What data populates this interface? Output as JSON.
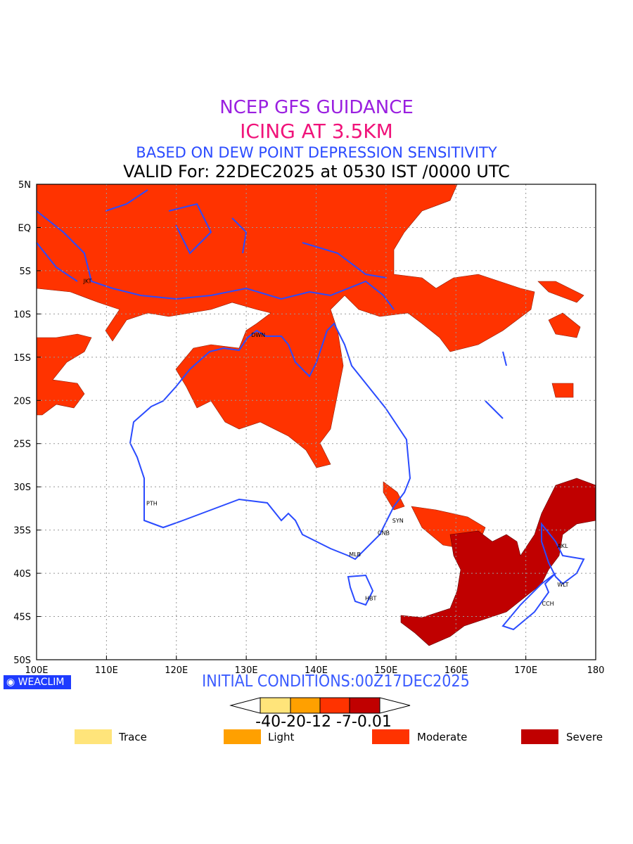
{
  "title": {
    "line1": "NCEP GFS GUIDANCE",
    "line2": "ICING AT 3.5KM",
    "line3": "BASED ON DEW POINT DEPRESSION SENSITIVITY",
    "line4": "VALID For: 22DEC2025 at 0530 IST /0000 UTC"
  },
  "map": {
    "lat_labels": [
      "5N",
      "EQ",
      "5S",
      "10S",
      "15S",
      "20S",
      "25S",
      "30S",
      "35S",
      "40S",
      "45S",
      "50S"
    ],
    "lon_labels": [
      "100E",
      "110E",
      "120E",
      "130E",
      "140E",
      "150E",
      "160E",
      "170E",
      "180"
    ],
    "cities": [
      {
        "code": "JKT",
        "lon": 107,
        "lat": -6.2
      },
      {
        "code": "DWN",
        "lon": 131,
        "lat": -12.4
      },
      {
        "code": "PTH",
        "lon": 116,
        "lat": -31.9
      },
      {
        "code": "SYN",
        "lon": 151.2,
        "lat": -33.9
      },
      {
        "code": "CNB",
        "lon": 149.1,
        "lat": -35.3
      },
      {
        "code": "MLB",
        "lon": 145,
        "lat": -37.8
      },
      {
        "code": "HBT",
        "lon": 147.3,
        "lat": -42.9
      },
      {
        "code": "AKL",
        "lon": 174.8,
        "lat": -36.8
      },
      {
        "code": "WLT",
        "lon": 174.8,
        "lat": -41.3
      },
      {
        "code": "CCH",
        "lon": 172.6,
        "lat": -43.5
      }
    ],
    "colors": {
      "coast": "#2A4BFF",
      "moderate": "#FF3300",
      "severe": "#C00000"
    }
  },
  "footer": {
    "logo": "WEACLIM",
    "initial_conditions": "INITIAL CONDITIONS:00Z17DEC2025",
    "colorbar_labels": "-40-20-12 -7-0.01",
    "colorbar_colors": [
      "#FFE47A",
      "#FFA000",
      "#FF3300",
      "#C00000"
    ],
    "legend": [
      {
        "label": "Trace",
        "color": "#FFE47A"
      },
      {
        "label": "Light",
        "color": "#FFA000"
      },
      {
        "label": "Moderate",
        "color": "#FF3300"
      },
      {
        "label": "Severe",
        "color": "#C00000"
      }
    ]
  }
}
